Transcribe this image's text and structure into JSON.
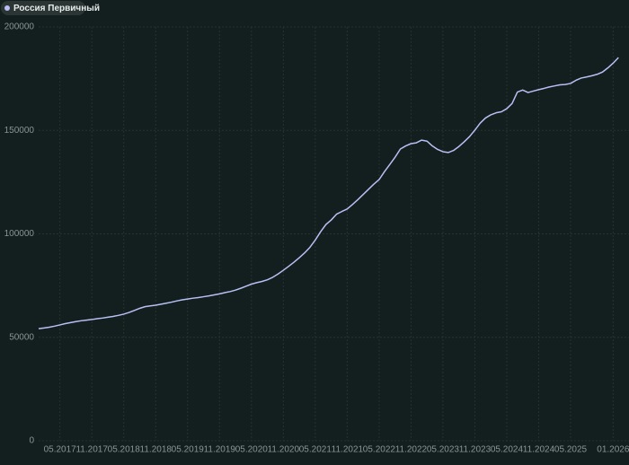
{
  "chart_data": {
    "type": "line",
    "categories": [
      null,
      null,
      null,
      null,
      "05.2017",
      null,
      null,
      null,
      null,
      null,
      "11.2017",
      null,
      null,
      null,
      null,
      null,
      "05.2018",
      null,
      null,
      null,
      null,
      null,
      "11.2018",
      null,
      null,
      null,
      null,
      null,
      "05.2019",
      null,
      null,
      null,
      null,
      null,
      "11.2019",
      null,
      null,
      null,
      null,
      null,
      "05.2020",
      null,
      null,
      null,
      null,
      null,
      "11.2020",
      null,
      null,
      null,
      null,
      null,
      "05.2021",
      null,
      null,
      null,
      null,
      null,
      "11.2021",
      null,
      null,
      null,
      null,
      null,
      "05.2022",
      null,
      null,
      null,
      null,
      null,
      "11.2022",
      null,
      null,
      null,
      null,
      null,
      "05.2023",
      null,
      null,
      null,
      null,
      null,
      "11.2023",
      null,
      null,
      null,
      null,
      null,
      "05.2024",
      null,
      null,
      null,
      null,
      null,
      "11.2024",
      null,
      null,
      null,
      null,
      null,
      "05.2025",
      null,
      null,
      null,
      null,
      null,
      null,
      null,
      "01.2026",
      null
    ],
    "series": [
      {
        "name": "Россия Первичный",
        "color": "#b9bff5",
        "values": [
          54200,
          54500,
          54900,
          55400,
          56000,
          56600,
          57100,
          57600,
          58000,
          58300,
          58600,
          59000,
          59300,
          59700,
          60100,
          60600,
          61200,
          62000,
          63000,
          64000,
          64800,
          65200,
          65500,
          66000,
          66500,
          67000,
          67600,
          68100,
          68500,
          68900,
          69200,
          69600,
          70000,
          70500,
          71000,
          71600,
          72100,
          72800,
          73700,
          74700,
          75700,
          76400,
          77000,
          77800,
          79000,
          80600,
          82400,
          84300,
          86300,
          88500,
          90800,
          93500,
          97000,
          101000,
          104500,
          106700,
          109500,
          110800,
          112000,
          114200,
          116500,
          119000,
          121500,
          124000,
          126200,
          130000,
          133500,
          137000,
          141000,
          142500,
          143600,
          144000,
          145300,
          144800,
          142500,
          140800,
          139700,
          139300,
          140300,
          142200,
          144500,
          147000,
          150100,
          153500,
          156000,
          157500,
          158500,
          159000,
          160500,
          163000,
          168500,
          169500,
          168300,
          169000,
          169700,
          170300,
          171000,
          171500,
          172000,
          172200,
          172700,
          174200,
          175300,
          175800,
          176400,
          177100,
          178200,
          180200,
          182500,
          185200
        ]
      }
    ],
    "ylim": [
      0,
      200000
    ],
    "yticks": [
      0,
      50000,
      100000,
      150000,
      200000
    ],
    "grid": true
  }
}
